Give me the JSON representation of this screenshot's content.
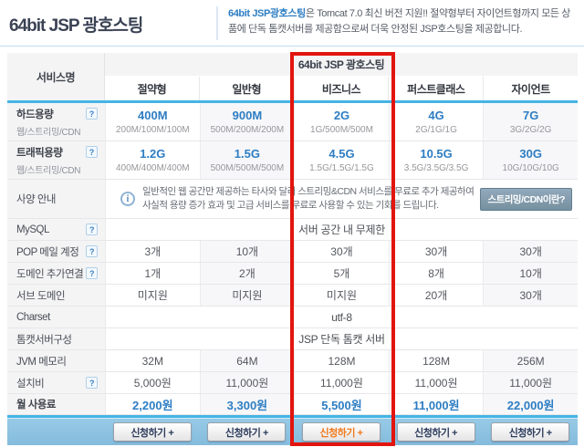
{
  "header": {
    "title": "64bit JSP 광호스팅",
    "desc_highlight": "64bit JSP광호스팅",
    "desc_rest": "은 Tomcat 7.0 최신 버전 지원!! 절약형부터 자이언트형까지 모든 상품에 단독 톰캣서버를 제공함으로써 더욱 안정된 JSP호스팅을 제공합니다."
  },
  "table": {
    "service_col_header": "서비스명",
    "group_header": "64bit JSP 광호스팅",
    "plans": [
      "절약형",
      "일반형",
      "비즈니스",
      "퍼스트클래스",
      "자이언트"
    ],
    "help_icon": "?",
    "info_icon": "i",
    "rows": {
      "hard": {
        "label": "하드용량",
        "sublabel": "웹/스트리밍/CDN",
        "main": [
          "400M",
          "900M",
          "2G",
          "4G",
          "7G"
        ],
        "sub": [
          "200M/100M/100M",
          "500M/200M/200M",
          "1G/500M/500M",
          "2G/1G/1G",
          "3G/2G/2G"
        ]
      },
      "traffic": {
        "label": "트래픽용량",
        "sublabel": "웹/스트리밍/CDN",
        "main": [
          "1.2G",
          "1.5G",
          "4.5G",
          "10.5G",
          "30G"
        ],
        "sub": [
          "400M/400M/400M",
          "500M/500M/500M",
          "1.5G/1.5G/1.5G",
          "3.5G/3.5G/3.5G",
          "10G/10G/10G"
        ]
      },
      "spec": {
        "label": "사양 안내",
        "info_line1": "일반적인 웹 공간만 제공하는 타사와 달리 스트리밍&CDN 서비스를 무료로 추가 제공하여",
        "info_line2": "사실적 용량 증가 효과 및 고급 서비스를 무료로 사용할 수 있는 기회를 드립니다.",
        "button": "스트리밍/CDN이란?"
      },
      "mysql": {
        "label": "MySQL",
        "value": "서버 공간 내 무제한"
      },
      "pop": {
        "label": "POP 메일 계정",
        "values": [
          "3개",
          "10개",
          "30개",
          "30개",
          "30개"
        ]
      },
      "domain": {
        "label": "도메인 추가연결",
        "values": [
          "1개",
          "2개",
          "5개",
          "8개",
          "10개"
        ]
      },
      "subdomain": {
        "label": "서브 도메인",
        "values": [
          "미지원",
          "미지원",
          "미지원",
          "20개",
          "30개"
        ]
      },
      "charset": {
        "label": "Charset",
        "value": "utf-8"
      },
      "tomcat": {
        "label": "톰캣서버구성",
        "value": "JSP 단독 톰캣 서버"
      },
      "jvm": {
        "label": "JVM 메모리",
        "values": [
          "32M",
          "64M",
          "128M",
          "128M",
          "256M"
        ]
      },
      "install": {
        "label": "설치비",
        "values": [
          "5,000원",
          "11,000원",
          "11,000원",
          "11,000원",
          "11,000원"
        ]
      },
      "monthly": {
        "label": "월 사용료",
        "values": [
          "2,200원",
          "3,300원",
          "5,500원",
          "11,000원",
          "22,000원"
        ]
      }
    },
    "apply_label": "신청하기 +"
  },
  "colors": {
    "accent_blue": "#2d7dc3",
    "highlight_red": "#e2150e",
    "cyan_line": "#45b4e4",
    "footer_bar": "#8bc0e0",
    "button_orange": "#f07a1d",
    "label_bg": "#f4f4f5"
  }
}
